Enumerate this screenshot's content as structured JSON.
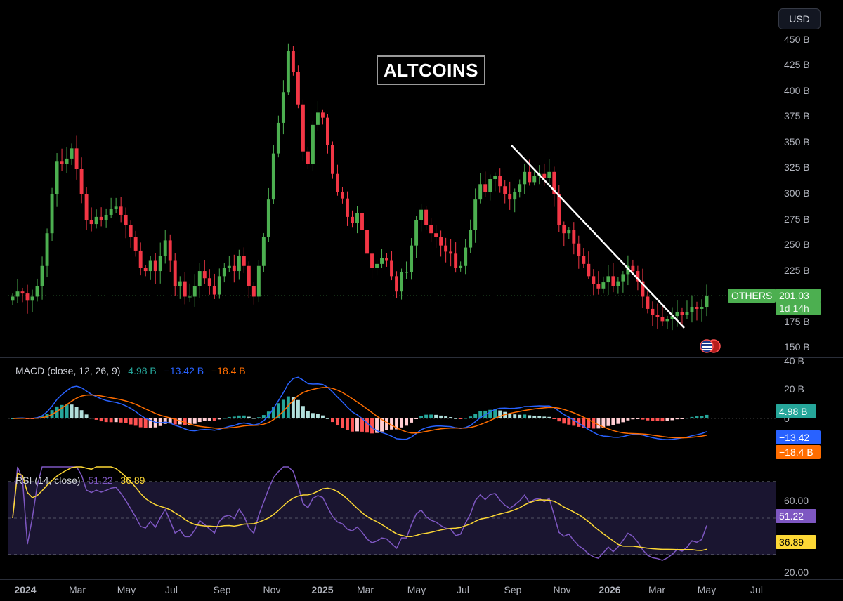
{
  "header": {
    "currency_button": "USD",
    "chart_title": "ALTCOINS"
  },
  "price_panel": {
    "symbol": "OTHERS",
    "last_price": "201.03 B",
    "countdown": "1d 14h",
    "y_ticks": [
      "450 B",
      "425 B",
      "400 B",
      "375 B",
      "350 B",
      "325 B",
      "300 B",
      "275 B",
      "250 B",
      "225 B",
      "175 B",
      "150 B"
    ]
  },
  "macd_panel": {
    "label": "MACD (close, 12, 26, 9)",
    "hist_value": "4.98 B",
    "macd_value": "−13.42 B",
    "signal_value": "−18.4 B",
    "y_ticks": [
      "40 B",
      "20 B",
      "0"
    ],
    "badges": [
      "4.98 B",
      "−13.42 B",
      "−18.4 B"
    ]
  },
  "rsi_panel": {
    "label": "RSI (14, close)",
    "rsi_value": "51.22",
    "ma_value": "36.89",
    "y_ticks": [
      "60.00",
      "20.00"
    ],
    "badges": [
      "51.22",
      "36.89"
    ]
  },
  "time_axis": {
    "labels": [
      "2024",
      "Mar",
      "May",
      "Jul",
      "Sep",
      "Nov",
      "2025",
      "Mar",
      "May",
      "Jul",
      "Sep",
      "Nov",
      "2026",
      "Mar",
      "May",
      "Jul"
    ]
  },
  "colors": {
    "up": "#26a69a",
    "candle_up": "#4caf50",
    "candle_down": "#f23645",
    "macd_line": "#2962ff",
    "signal_line": "#ff6d00",
    "rsi_line": "#7e57c2",
    "rsi_ma": "#fdd835",
    "hist_up_strong": "#26a69a",
    "hist_up_weak": "#b2dfdb",
    "hist_down_strong": "#ff5252",
    "hist_down_weak": "#ffcdd2"
  },
  "chart_data": {
    "type": "candlestick",
    "title": "ALTCOINS",
    "symbol": "OTHERS",
    "y_unit": "B USD",
    "ylim": [
      150,
      455
    ],
    "x_range": [
      "2024-01",
      "2026-07"
    ],
    "interval": "weekly",
    "closes": [
      200,
      205,
      203,
      196,
      200,
      210,
      230,
      262,
      300,
      332,
      330,
      335,
      345,
      325,
      300,
      275,
      271,
      278,
      275,
      280,
      286,
      288,
      280,
      270,
      258,
      245,
      228,
      225,
      235,
      225,
      240,
      255,
      235,
      210,
      215,
      200,
      200,
      210,
      225,
      218,
      210,
      202,
      220,
      228,
      230,
      225,
      240,
      230,
      210,
      200,
      230,
      258,
      295,
      340,
      370,
      400,
      440,
      420,
      388,
      342,
      330,
      368,
      380,
      375,
      348,
      320,
      302,
      296,
      278,
      272,
      282,
      265,
      242,
      228,
      232,
      238,
      235,
      220,
      205,
      224,
      224,
      250,
      275,
      285,
      270,
      262,
      258,
      250,
      244,
      242,
      228,
      230,
      248,
      265,
      295,
      310,
      302,
      315,
      318,
      308,
      300,
      295,
      302,
      310,
      322,
      312,
      318,
      320,
      316,
      322,
      300,
      270,
      262,
      265,
      252,
      240,
      232,
      220,
      212,
      208,
      214,
      220,
      210,
      215,
      222,
      230,
      225,
      215,
      200,
      188,
      182,
      180,
      176,
      178,
      181,
      185,
      182,
      185,
      190,
      188,
      190,
      201
    ]
  }
}
